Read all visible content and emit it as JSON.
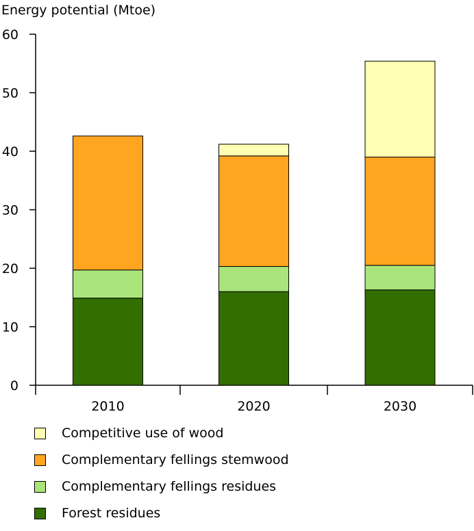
{
  "chart_data": {
    "type": "bar",
    "stacked": true,
    "title": "",
    "ylabel": "Energy potential (Mtoe)",
    "xlabel": "",
    "categories": [
      "2010",
      "2020",
      "2030"
    ],
    "ylim": [
      0,
      60
    ],
    "yticks": [
      0,
      10,
      20,
      30,
      40,
      50,
      60
    ],
    "grid": false,
    "legend_position": "bottom",
    "series": [
      {
        "name": "Forest residues",
        "color": "#336e00",
        "values": [
          14.9,
          16.0,
          16.3
        ]
      },
      {
        "name": "Complementary fellings residues",
        "color": "#a9e57a",
        "values": [
          4.8,
          4.3,
          4.2
        ]
      },
      {
        "name": "Complementary fellings stemwood",
        "color": "#ffa51f",
        "values": [
          22.9,
          18.9,
          18.5
        ]
      },
      {
        "name": "Competitive use of wood",
        "color": "#ffffb3",
        "values": [
          0.0,
          2.0,
          16.4
        ]
      }
    ],
    "legend_order": [
      "Competitive use of wood",
      "Complementary fellings stemwood",
      "Complementary fellings residues",
      "Forest residues"
    ]
  }
}
